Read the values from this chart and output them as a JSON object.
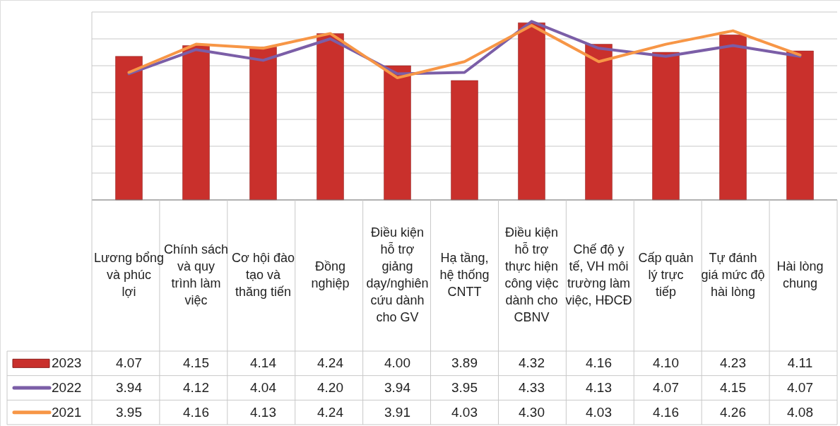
{
  "chart_data": {
    "type": "bar",
    "categories": [
      "Lương bổng và phúc lợi",
      "Chính sách và quy trình làm việc",
      "Cơ hội đào tạo và thăng tiến",
      "Đồng nghiệp",
      "Điều kiện hỗ trợ giảng dạy/nghiên cứu dành cho GV",
      "Hạ tầng, hệ thống CNTT",
      "Điều kiện hỗ trợ thực hiện công việc dành cho CBNV",
      "Chế độ y tế, VH môi trường làm việc, HĐCĐ",
      "Cấp quản lý trực tiếp",
      "Tự đánh giá mức độ hài lòng",
      "Hài lòng chung"
    ],
    "series": [
      {
        "name": "2023",
        "color": "#c9302c",
        "values": [
          4.07,
          4.15,
          4.14,
          4.24,
          4.0,
          3.89,
          4.32,
          4.16,
          4.1,
          4.23,
          4.11
        ],
        "value_labels": [
          "4.07",
          "4.15",
          "4.14",
          "4.24",
          "4.00",
          "3.89",
          "4.32",
          "4.16",
          "4.10",
          "4.23",
          "4.11"
        ]
      },
      {
        "name": "2022",
        "type": "line",
        "color": "#7b5ea7",
        "values": [
          3.94,
          4.12,
          4.04,
          4.2,
          3.94,
          3.95,
          4.33,
          4.13,
          4.07,
          4.15,
          4.07
        ],
        "value_labels": [
          "3.94",
          "4.12",
          "4.04",
          "4.20",
          "3.94",
          "3.95",
          "4.33",
          "4.13",
          "4.07",
          "4.15",
          "4.07"
        ]
      },
      {
        "name": "2021",
        "type": "line",
        "color": "#f79646",
        "values": [
          3.95,
          4.16,
          4.13,
          4.24,
          3.91,
          4.03,
          4.3,
          4.03,
          4.16,
          4.26,
          4.08
        ],
        "value_labels": [
          "3.95",
          "4.16",
          "4.13",
          "4.24",
          "3.91",
          "4.03",
          "4.30",
          "4.03",
          "4.16",
          "4.26",
          "4.08"
        ]
      }
    ],
    "ylim": [
      3.0,
      4.4
    ],
    "yticks": [
      {
        "value": 3.0,
        "label": null
      },
      {
        "value": 3.2,
        "label": null
      },
      {
        "value": 3.4,
        "label": null
      },
      {
        "value": 3.6,
        "label": null
      },
      {
        "value": 3.8,
        "label": null
      },
      {
        "value": 4.0,
        "label": null
      },
      {
        "value": 4.2,
        "label": null
      },
      {
        "value": 4.4,
        "label": null
      }
    ],
    "grid": "y",
    "legend": "bottom left",
    "tick_labels": "x"
  }
}
